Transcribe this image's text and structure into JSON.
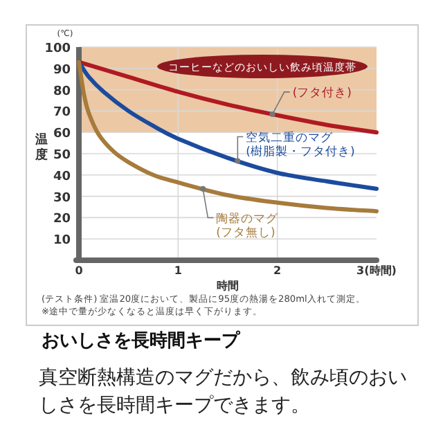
{
  "chart_data": {
    "type": "line",
    "title": "おいしさを長時間キープ",
    "subtitle": "真空断熱構造のマグだから、飲み頃のおいしさを長時間キープできます。",
    "xlabel": "時間",
    "ylabel": "温度",
    "xlim": [
      0,
      3
    ],
    "xticks": [
      0,
      1,
      2,
      {
        "value": 3,
        "label": "3(時間)"
      }
    ],
    "ylim": [
      0,
      100
    ],
    "yticks": [
      {
        "value": 0,
        "label": null
      },
      10,
      20,
      30,
      40,
      50,
      60,
      70,
      80,
      90,
      100
    ],
    "grid": true,
    "line_style": "solid",
    "bands": [
      {
        "axis": "y",
        "from": 60,
        "to": 100,
        "label": "コーヒーなどのおいしい飲み頃温度帯",
        "color": "#ecc8a4"
      }
    ],
    "annotations": [
      "(℃)",
      "(テスト条件) 室温20度において、製品に95度の熱湯を280ml入れて測定。",
      "※途中で量が少なくなると温度は早く下がります。"
    ],
    "series": [
      {
        "name": "(フタ付き)",
        "color": "#b01a22",
        "x": [
          0,
          0.5,
          1,
          1.5,
          2,
          2.5,
          3
        ],
        "values": [
          93,
          86,
          79,
          73,
          68,
          63.5,
          60
        ]
      },
      {
        "name": "空気二重のマグ\n(樹脂製・フタ付き)",
        "color": "#1c4b9e",
        "x": [
          0,
          0.1,
          0.25,
          0.5,
          0.75,
          1,
          1.5,
          2,
          2.5,
          3
        ],
        "values": [
          93,
          86,
          79,
          70,
          63,
          57,
          48,
          41,
          37,
          33.5
        ]
      },
      {
        "name": "陶器のマグ\n(フタ無し)",
        "color": "#a67b3c",
        "x": [
          0,
          0.05,
          0.1,
          0.2,
          0.35,
          0.5,
          0.75,
          1,
          1.5,
          2,
          2.5,
          3
        ],
        "values": [
          93,
          78,
          69,
          59,
          51,
          46,
          40,
          36.5,
          30.5,
          27,
          24.5,
          23
        ]
      }
    ]
  }
}
